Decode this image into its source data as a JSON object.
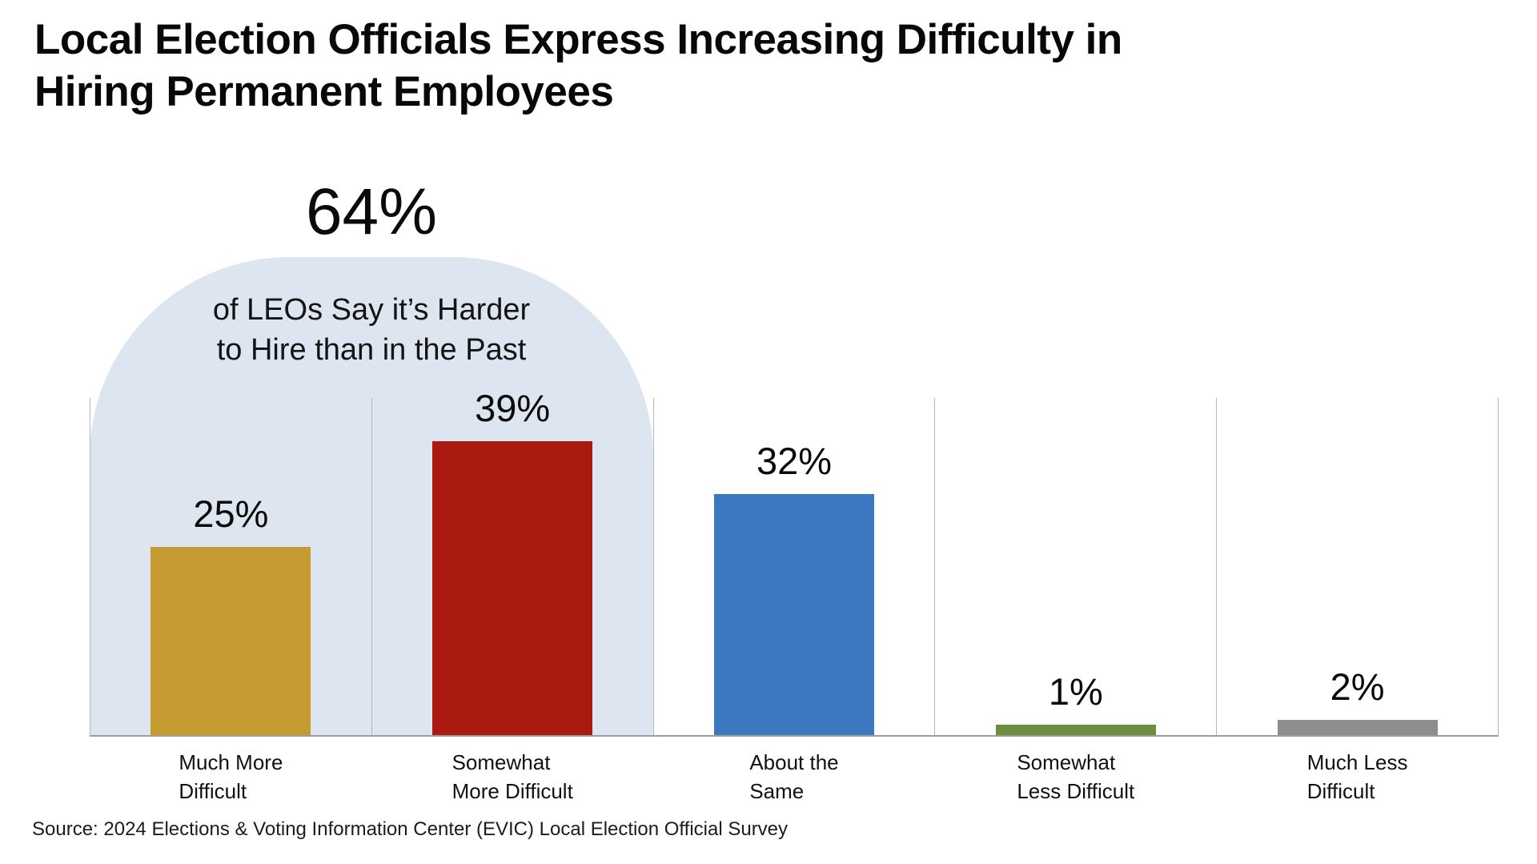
{
  "title_lines": [
    "Local Election Officials Express Increasing Difficulty in",
    "Hiring Permanent Employees"
  ],
  "annotation": {
    "value": "64%",
    "lines": [
      "of LEOs Say it’s Harder",
      "to Hire than in the Past"
    ]
  },
  "source": "Source: 2024 Elections & Voting Information Center (EVIC) Local Election Official Survey",
  "chart_data": {
    "type": "bar",
    "title": "Local Election Officials Express Increasing Difficulty in Hiring Permanent Employees",
    "categories": [
      "Much More Difficult",
      "Somewhat More Difficult",
      "About the Same",
      "Somewhat Less Difficult",
      "Much Less Difficult"
    ],
    "category_lines": [
      [
        "Much More",
        "Difficult"
      ],
      [
        "Somewhat",
        "More Difficult"
      ],
      [
        "About the",
        "Same"
      ],
      [
        "Somewhat",
        "Less Difficult"
      ],
      [
        "Much Less",
        "Difficult"
      ]
    ],
    "values": [
      25,
      39,
      32,
      1,
      2
    ],
    "value_labels": [
      "25%",
      "39%",
      "32%",
      "1%",
      "2%"
    ],
    "colors": [
      "#c69b31",
      "#ab1a10",
      "#3b78bf",
      "#6d8e3e",
      "#8e8e8e"
    ],
    "annotation": {
      "value_pct": 64,
      "text": "of LEOs Say it’s Harder to Hire than in the Past",
      "covers_categories": [
        "Much More Difficult",
        "Somewhat More Difficult"
      ],
      "highlight_color": "#dde5f1"
    },
    "xlabel": "",
    "ylabel": "",
    "ylim": [
      0,
      45
    ],
    "grid": "vertical-category-separators",
    "legend": "none",
    "source": "Source: 2024 Elections & Voting Information Center (EVIC) Local Election Official Survey"
  }
}
